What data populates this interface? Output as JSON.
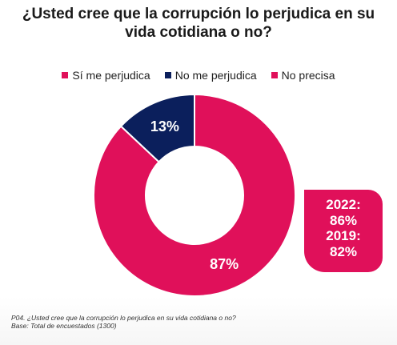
{
  "chart_data": {
    "type": "pie",
    "title": "¿Usted cree que la corrupción lo perjudica en su vida cotidiana o no?",
    "categories": [
      "Sí me perjudica",
      "No me perjudica",
      "No precisa"
    ],
    "values": [
      87,
      13,
      0
    ],
    "value_labels": [
      "87%",
      "13%",
      ""
    ],
    "colors": [
      "#e0105a",
      "#0b1f5c",
      "#e0105a"
    ],
    "donut": true,
    "legend_position": "top",
    "callout": {
      "lines": [
        "2022:",
        "86%",
        "2019:",
        "82%"
      ],
      "color": "#e0105a"
    }
  },
  "footnote": {
    "question": "P04. ¿Usted cree que la corrupción lo perjudica en su vida cotidiana o no?",
    "base": "Base: Total de encuestados  (1300)"
  }
}
